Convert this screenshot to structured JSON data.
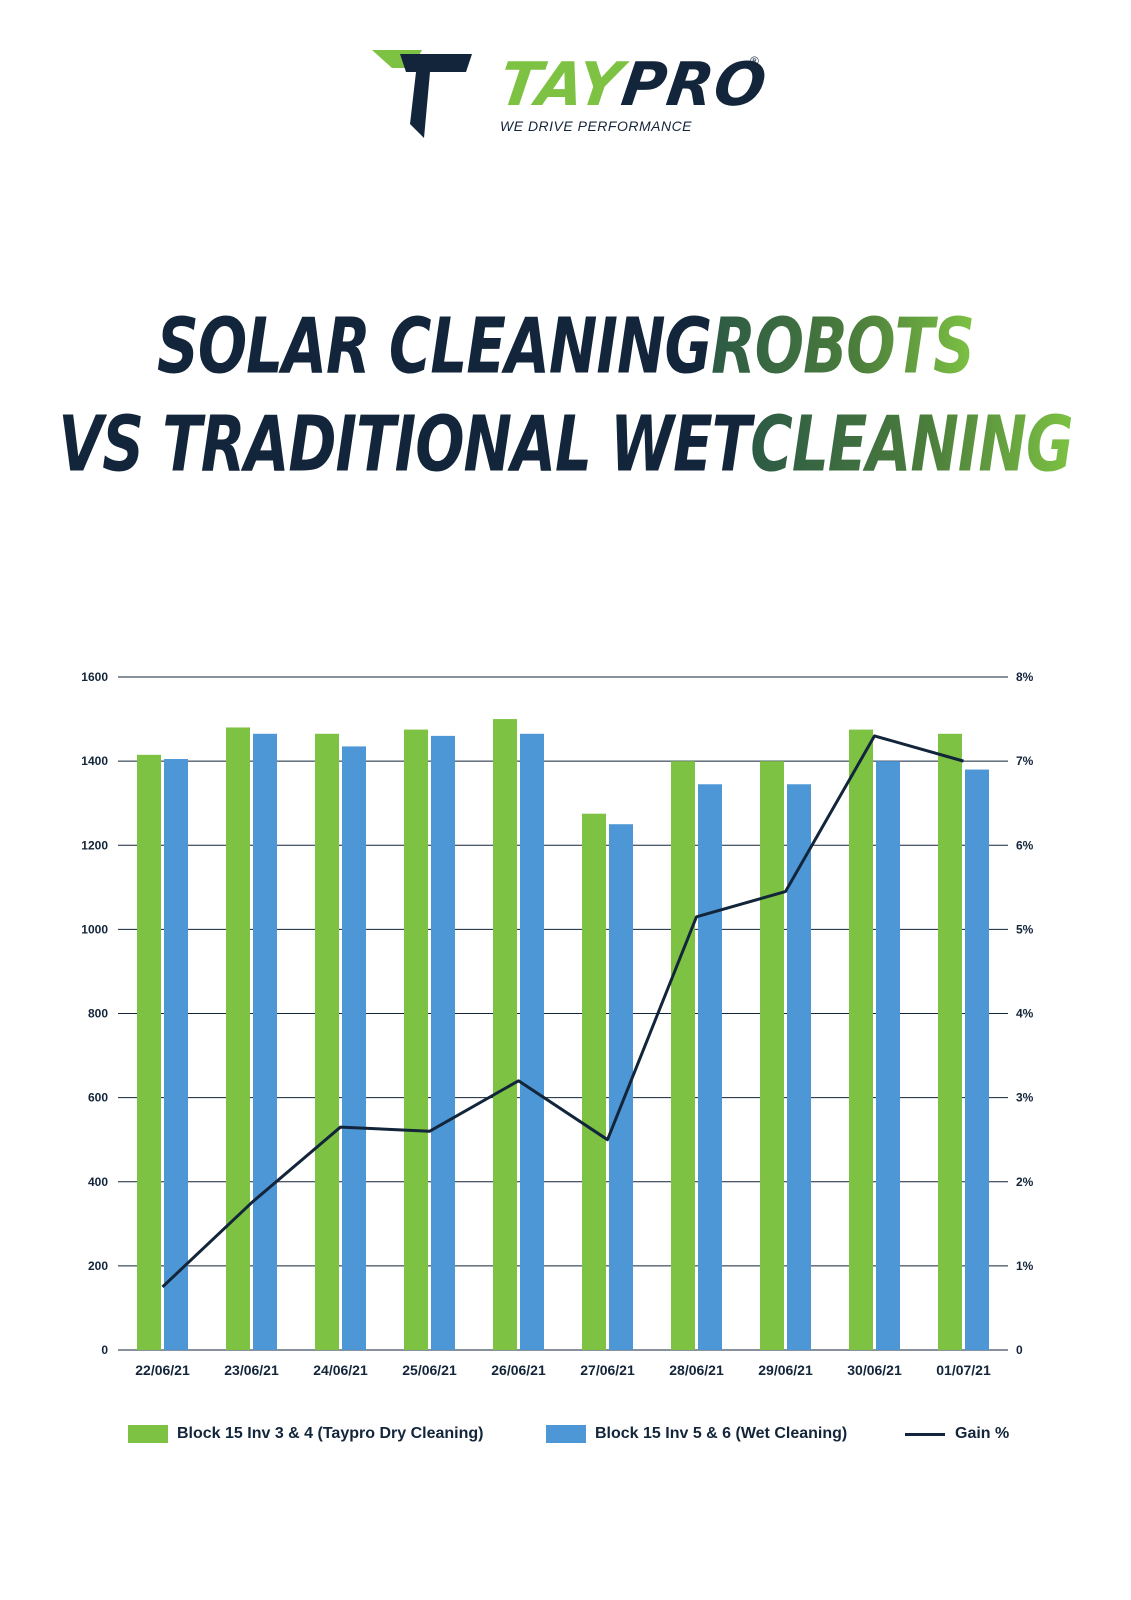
{
  "brand": {
    "name_green": "TAY",
    "name_dark": "PRO",
    "registered": "®",
    "tagline": "WE DRIVE PERFORMANCE"
  },
  "title": {
    "line1_dark": "SOLAR CLEANING ",
    "line1_accent": "ROBOTS",
    "line2_dark": "VS TRADITIONAL WET ",
    "line2_accent": "CLEANING"
  },
  "colors": {
    "dry": "#7dc243",
    "wet": "#4e97d6",
    "gain": "#13253a",
    "grid": "#13253a"
  },
  "chart_data": {
    "type": "bar",
    "categories": [
      "22/06/21",
      "23/06/21",
      "24/06/21",
      "25/06/21",
      "26/06/21",
      "27/06/21",
      "28/06/21",
      "29/06/21",
      "30/06/21",
      "01/07/21"
    ],
    "series": [
      {
        "name": "Block 15 Inv 3 & 4 (Taypro Dry Cleaning)",
        "type": "bar",
        "values": [
          1415,
          1480,
          1465,
          1475,
          1500,
          1275,
          1400,
          1400,
          1475,
          1465
        ]
      },
      {
        "name": "Block 15 Inv 5 & 6 (Wet Cleaning)",
        "type": "bar",
        "values": [
          1405,
          1465,
          1435,
          1460,
          1465,
          1250,
          1345,
          1345,
          1400,
          1380
        ]
      },
      {
        "name": "Gain %",
        "type": "line",
        "axis": "right",
        "values": [
          0.75,
          1.75,
          2.65,
          2.6,
          3.2,
          2.5,
          5.15,
          5.45,
          7.3,
          7.0
        ]
      }
    ],
    "ylim": [
      0,
      1600
    ],
    "yticks": [
      "0",
      "200",
      "400",
      "600",
      "800",
      "1000",
      "1200",
      "1400",
      "1600"
    ],
    "y2lim": [
      0,
      8
    ],
    "y2ticks": [
      "0",
      "1%",
      "2%",
      "3%",
      "4%",
      "5%",
      "6%",
      "7%",
      "8%"
    ],
    "grid": true,
    "legend_position": "bottom"
  }
}
